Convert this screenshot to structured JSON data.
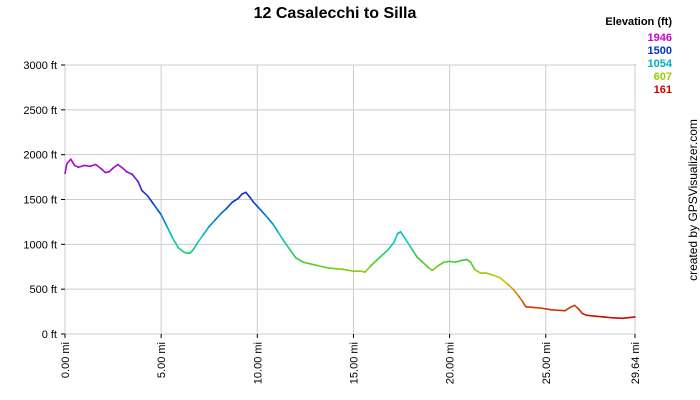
{
  "chart_data": {
    "type": "line",
    "title": "12 Casalecchi to Silla",
    "xlabel": "",
    "ylabel": "",
    "xlim": [
      0,
      29.64
    ],
    "ylim": [
      0,
      3000
    ],
    "grid": true,
    "x_ticks": [
      "0.00 mi",
      "5.00 mi",
      "10.00 mi",
      "15.00 mi",
      "20.00 mi",
      "25.00 mi",
      "29.64 mi"
    ],
    "x_tick_values": [
      0,
      5,
      10,
      15,
      20,
      25,
      29.64
    ],
    "y_ticks": [
      "0 ft",
      "500 ft",
      "1000 ft",
      "1500 ft",
      "2000 ft",
      "2500 ft",
      "3000 ft"
    ],
    "y_tick_values": [
      0,
      500,
      1000,
      1500,
      2000,
      2500,
      3000
    ],
    "legend": {
      "title": "Elevation (ft)",
      "position": "top-right",
      "entries": [
        {
          "label": "1946",
          "color": "#cc00cc"
        },
        {
          "label": "1500",
          "color": "#0033cc"
        },
        {
          "label": "1054",
          "color": "#00b3b3"
        },
        {
          "label": "607",
          "color": "#99cc00"
        },
        {
          "label": "161",
          "color": "#cc0000"
        }
      ]
    },
    "color_scale": {
      "min": 161,
      "max": 1946,
      "stops": [
        {
          "value": 161,
          "color": "#cc0000"
        },
        {
          "value": 607,
          "color": "#cccc00"
        },
        {
          "value": 830,
          "color": "#33cc33"
        },
        {
          "value": 1054,
          "color": "#00cccc"
        },
        {
          "value": 1500,
          "color": "#0033cc"
        },
        {
          "value": 1946,
          "color": "#cc00cc"
        }
      ]
    },
    "credit": "created by GPSVisualizer.com",
    "series": [
      {
        "x": [
          0,
          0.1,
          0.3,
          0.5,
          0.7,
          1.0,
          1.3,
          1.6,
          1.9,
          2.1,
          2.3,
          2.5,
          2.75,
          3.0,
          3.2,
          3.5,
          3.8,
          4.0,
          4.3,
          4.6,
          5.0,
          5.3,
          5.6,
          5.9,
          6.2,
          6.5,
          6.7,
          6.9,
          7.2,
          7.5,
          7.8,
          8.1,
          8.4,
          8.7,
          9.0,
          9.2,
          9.4,
          9.6,
          9.8,
          10.1,
          10.4,
          10.8,
          11.1,
          11.4,
          11.7,
          12.0,
          12.4,
          12.8,
          13.2,
          13.6,
          14.0,
          14.5,
          15.0,
          15.4,
          15.6,
          15.9,
          16.2,
          16.5,
          16.8,
          17.1,
          17.3,
          17.45,
          17.7,
          18.0,
          18.3,
          18.6,
          18.9,
          19.1,
          19.4,
          19.7,
          20.0,
          20.3,
          20.6,
          20.9,
          21.1,
          21.3,
          21.6,
          21.9,
          22.2,
          22.6,
          23.0,
          23.3,
          23.6,
          23.8,
          23.9,
          24.0,
          24.2,
          24.4,
          24.7,
          25.0,
          25.3,
          25.6,
          26.0,
          26.3,
          26.5,
          26.7,
          26.9,
          27.1,
          27.5,
          28.0,
          28.5,
          29.0,
          29.64
        ],
        "y": [
          1790,
          1900,
          1950,
          1880,
          1860,
          1880,
          1870,
          1890,
          1840,
          1800,
          1810,
          1850,
          1890,
          1850,
          1810,
          1780,
          1700,
          1600,
          1540,
          1450,
          1330,
          1200,
          1070,
          960,
          910,
          900,
          950,
          1020,
          1110,
          1200,
          1270,
          1340,
          1400,
          1470,
          1510,
          1560,
          1580,
          1530,
          1470,
          1400,
          1330,
          1230,
          1130,
          1030,
          940,
          850,
          800,
          780,
          760,
          740,
          730,
          720,
          700,
          700,
          690,
          760,
          820,
          880,
          940,
          1020,
          1120,
          1140,
          1060,
          960,
          860,
          800,
          740,
          710,
          760,
          800,
          810,
          800,
          820,
          830,
          800,
          720,
          680,
          680,
          660,
          630,
          560,
          500,
          420,
          360,
          320,
          300,
          300,
          295,
          290,
          280,
          270,
          265,
          260,
          300,
          320,
          280,
          230,
          210,
          200,
          190,
          180,
          175,
          190
        ]
      }
    ]
  }
}
